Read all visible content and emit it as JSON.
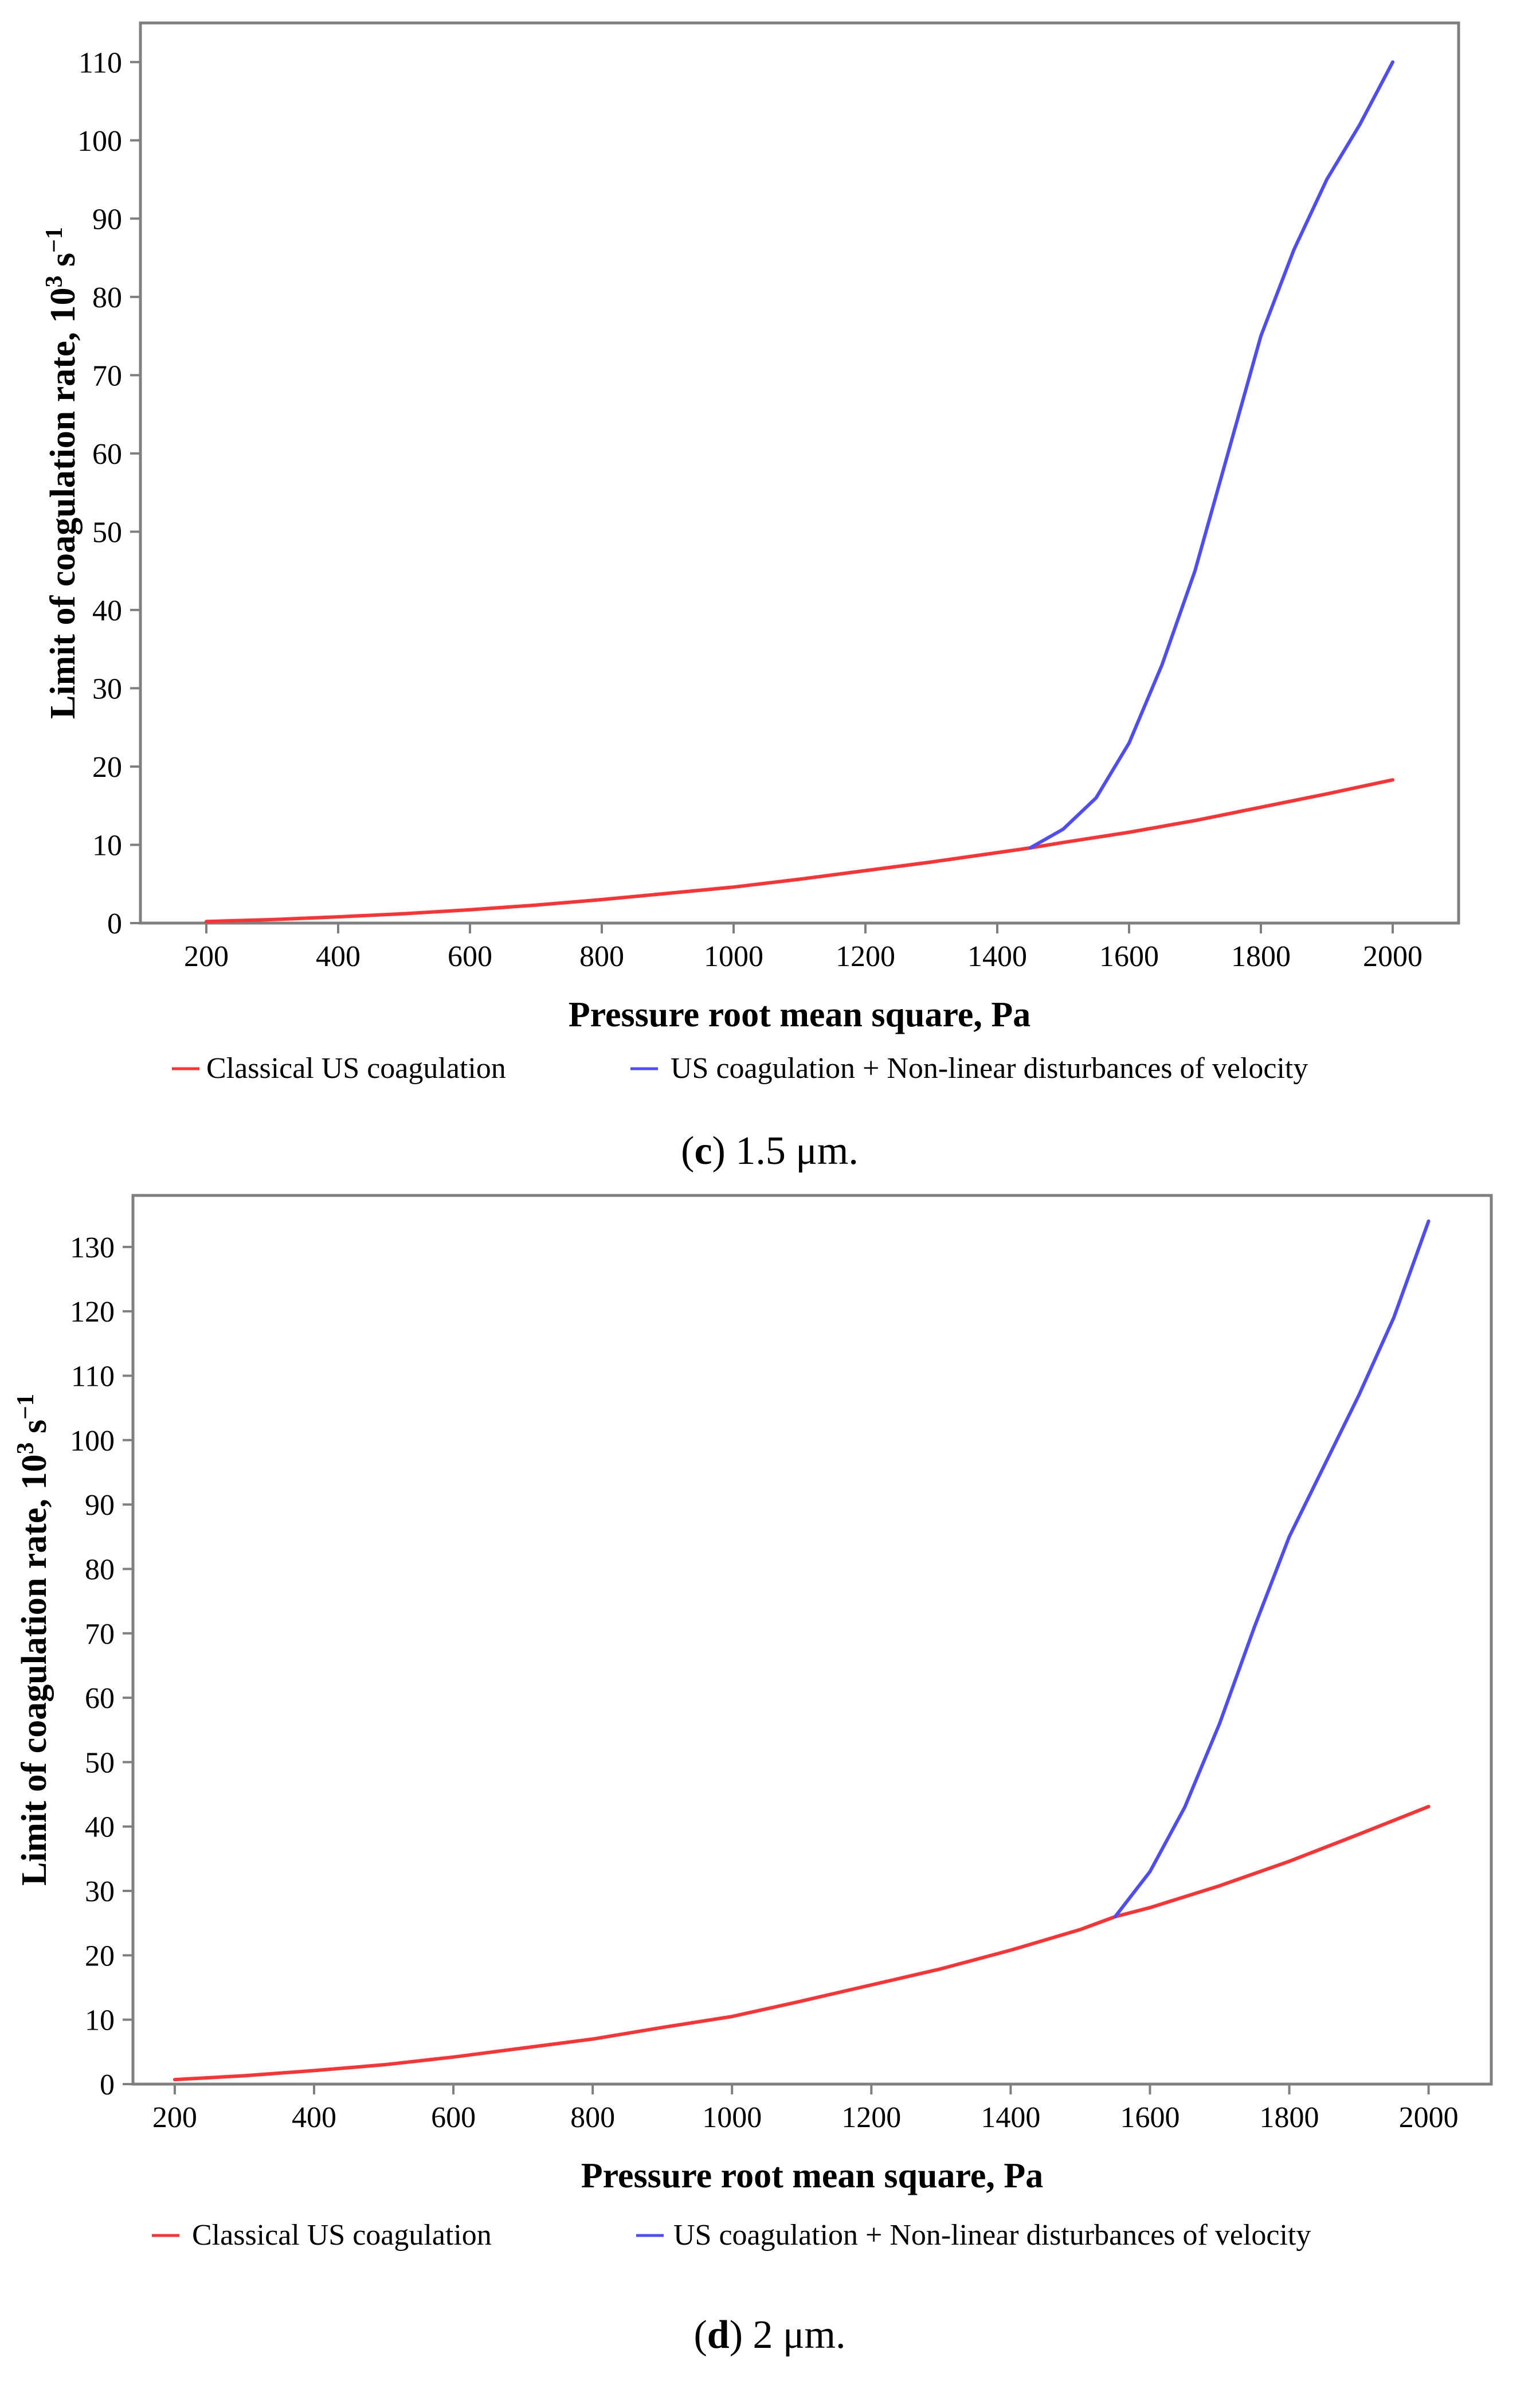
{
  "chart_data": [
    {
      "type": "line",
      "caption_letter": "c",
      "caption_text": "1.5 μm.",
      "xlabel": "Pressure root mean square, Pa",
      "ylabel_main": "Limit of coagulation rate, 10",
      "ylabel_exp": "3",
      "ylabel_unit": " s",
      "ylabel_unit_exp": "−1",
      "xlim": [
        100,
        2100
      ],
      "ylim": [
        0,
        115
      ],
      "xticks": [
        200,
        400,
        600,
        800,
        1000,
        1200,
        1400,
        1600,
        1800,
        2000
      ],
      "yticks": [
        0,
        10,
        20,
        30,
        40,
        50,
        60,
        70,
        80,
        90,
        100,
        110
      ],
      "series": [
        {
          "name": "Classical US coagulation",
          "color": "#ff3333",
          "x": [
            200,
            300,
            400,
            500,
            600,
            700,
            800,
            900,
            1000,
            1100,
            1200,
            1300,
            1400,
            1450,
            1500,
            1600,
            1700,
            1800,
            1900,
            2000
          ],
          "y": [
            0.2,
            0.45,
            0.8,
            1.2,
            1.7,
            2.3,
            3.0,
            3.8,
            4.6,
            5.6,
            6.7,
            7.8,
            9.0,
            9.6,
            10.3,
            11.6,
            13.1,
            14.8,
            16.5,
            18.3
          ]
        },
        {
          "name": "US coagulation + Non-linear disturbances of velocity",
          "color": "#4d4dff",
          "x": [
            1450,
            1500,
            1550,
            1600,
            1650,
            1700,
            1750,
            1800,
            1850,
            1900,
            1950,
            2000
          ],
          "y": [
            9.6,
            12,
            16,
            23,
            33,
            45,
            60,
            75,
            86,
            95,
            102,
            110
          ]
        }
      ]
    },
    {
      "type": "line",
      "caption_letter": "d",
      "caption_text": "2 μm.",
      "xlabel": "Pressure root mean square, Pa",
      "ylabel_main": "Limit of coagulation rate, 10",
      "ylabel_exp": "3",
      "ylabel_unit": " s",
      "ylabel_unit_exp": "−1",
      "xlim": [
        140,
        2090
      ],
      "ylim": [
        0,
        138
      ],
      "xticks": [
        200,
        400,
        600,
        800,
        1000,
        1200,
        1400,
        1600,
        1800,
        2000
      ],
      "yticks": [
        0,
        10,
        20,
        30,
        40,
        50,
        60,
        70,
        80,
        90,
        100,
        110,
        120,
        130
      ],
      "series": [
        {
          "name": "Classical US coagulation",
          "color": "#ff3333",
          "x": [
            200,
            300,
            400,
            500,
            600,
            700,
            800,
            900,
            1000,
            1100,
            1200,
            1300,
            1400,
            1500,
            1550,
            1600,
            1700,
            1800,
            1900,
            2000
          ],
          "y": [
            0.7,
            1.3,
            2.1,
            3.0,
            4.2,
            5.6,
            7.0,
            8.8,
            10.5,
            12.9,
            15.4,
            17.9,
            20.8,
            24.0,
            26.0,
            27.4,
            30.8,
            34.6,
            38.8,
            43.1
          ]
        },
        {
          "name": "US coagulation + Non-linear disturbances of velocity",
          "color": "#4d4dff",
          "x": [
            1550,
            1600,
            1650,
            1700,
            1750,
            1800,
            1850,
            1900,
            1950,
            2000
          ],
          "y": [
            26,
            33,
            43,
            56,
            71,
            85,
            96,
            107,
            119,
            134
          ]
        }
      ]
    }
  ]
}
